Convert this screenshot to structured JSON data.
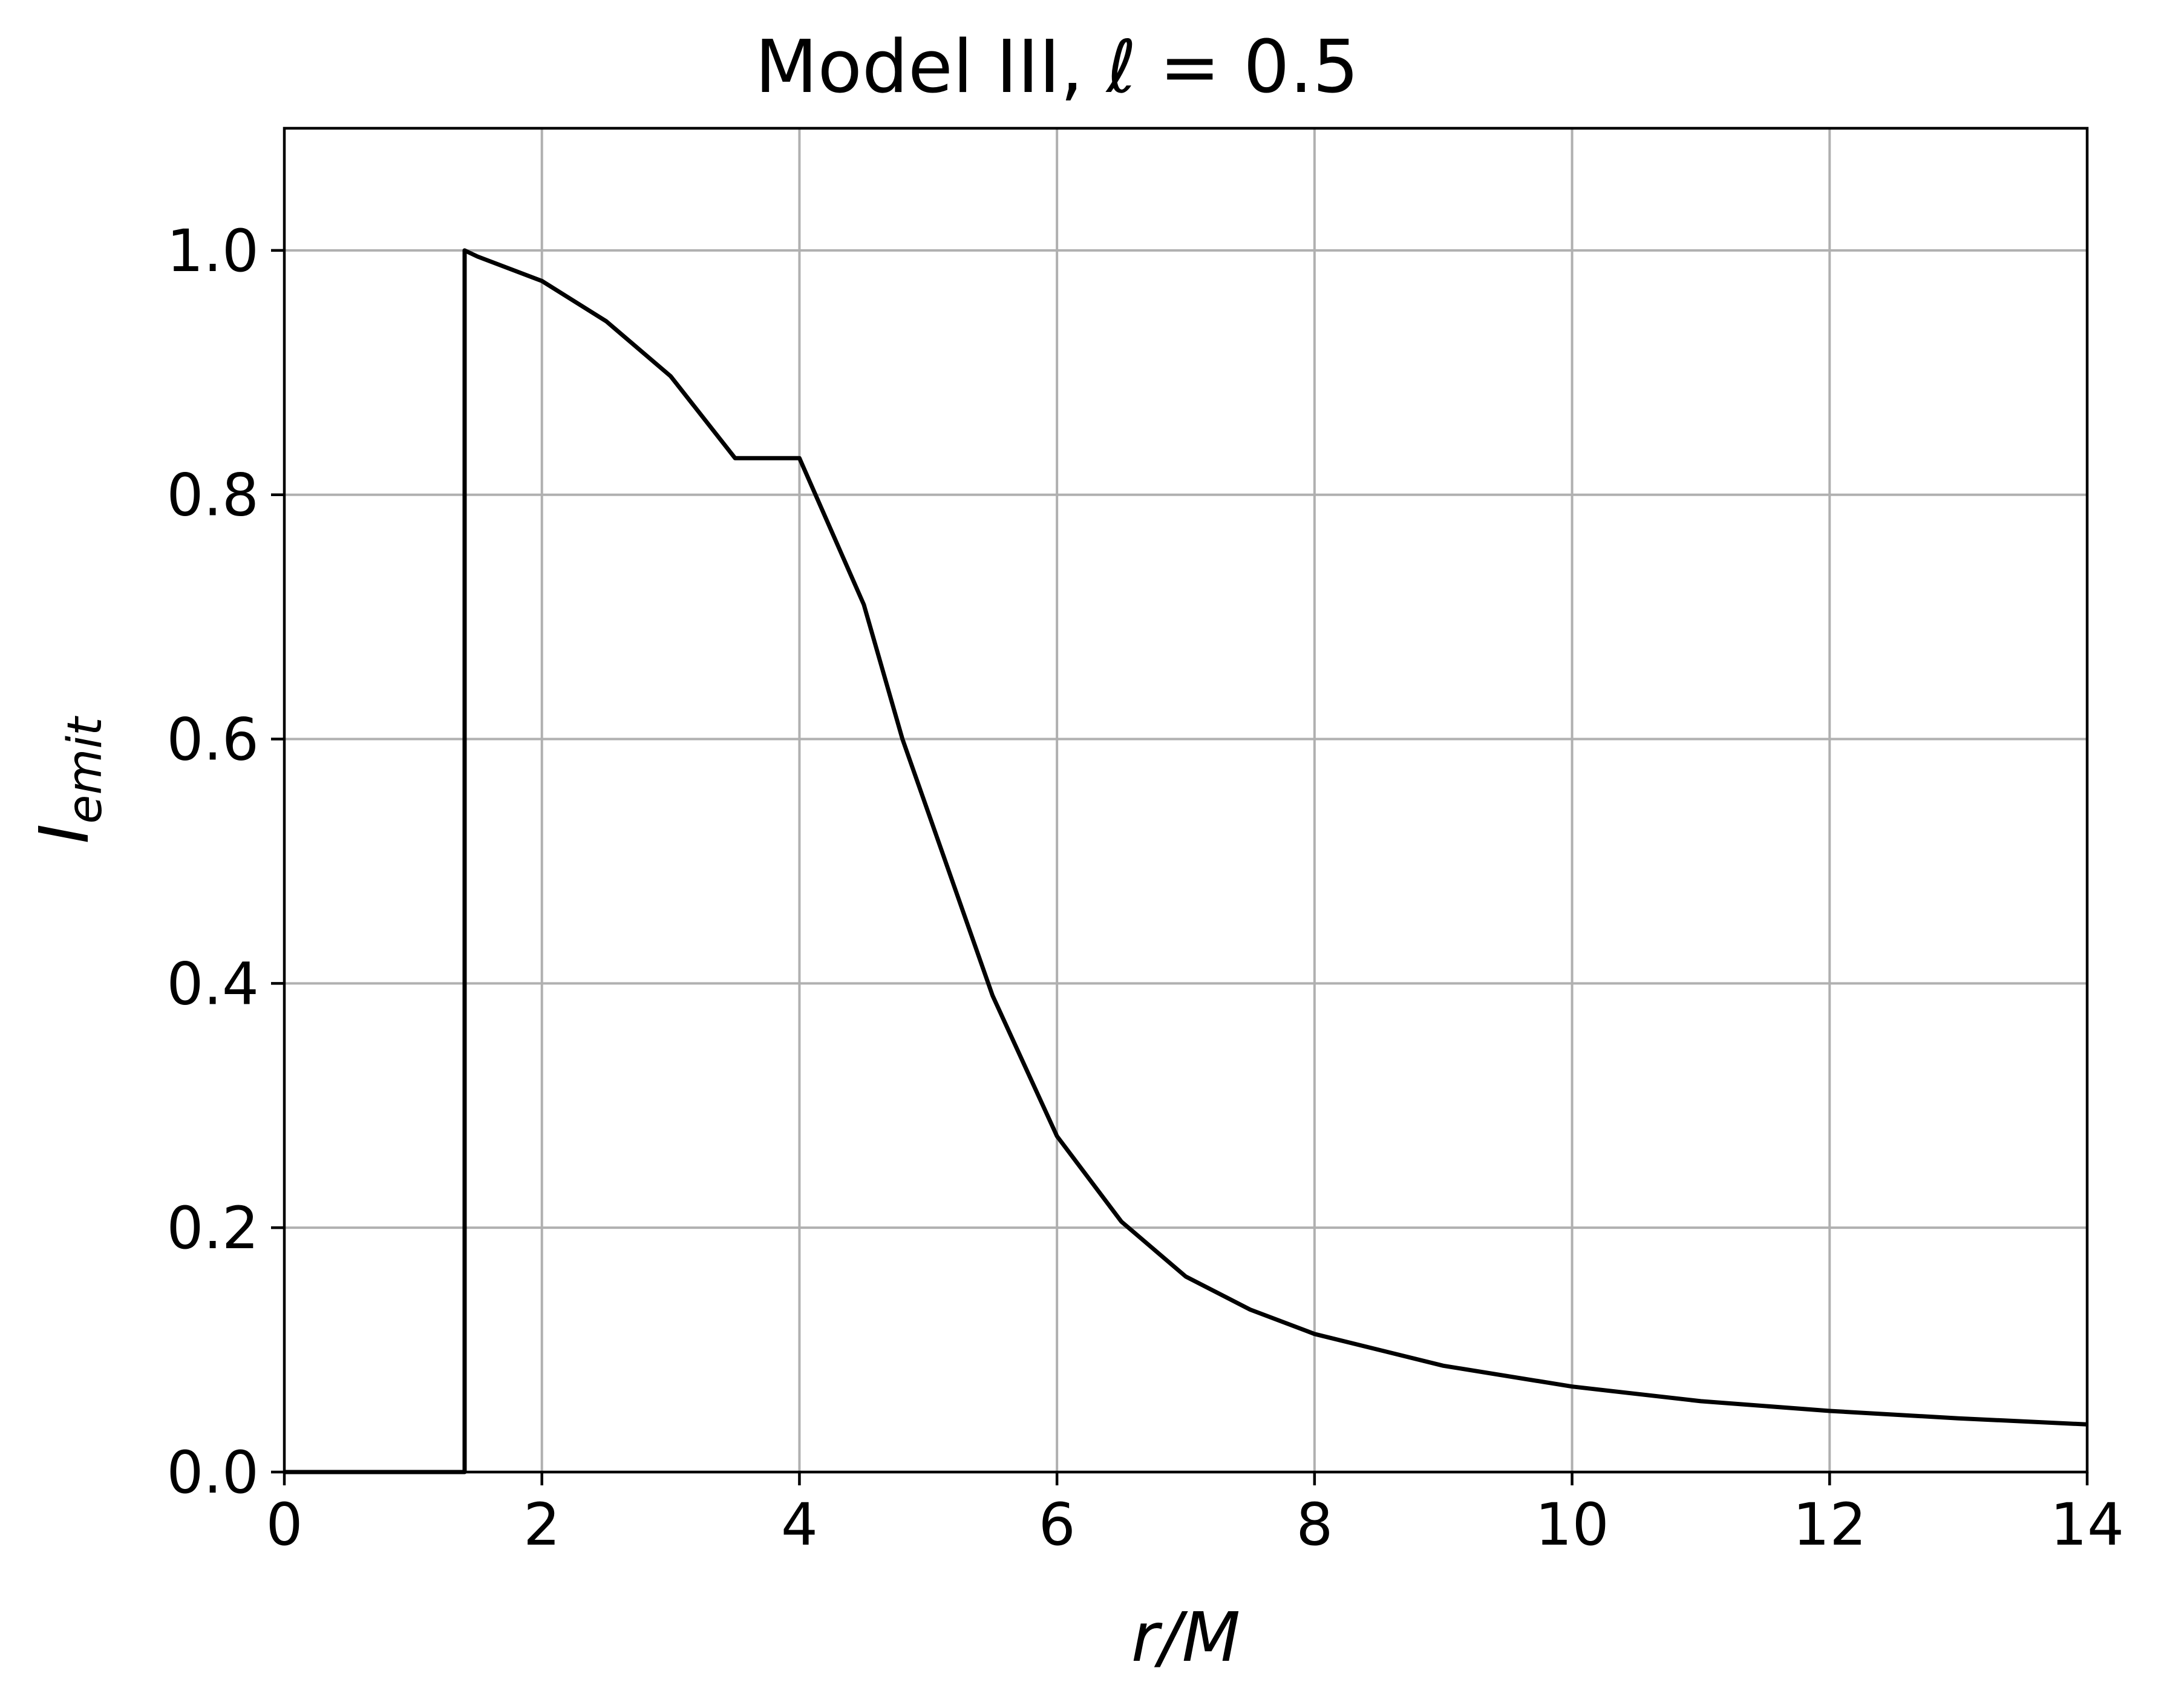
{
  "chart_data": {
    "type": "line",
    "title": "Model III, ℓ = 0.5",
    "xlabel": "r/M",
    "ylabel": {
      "main": "I",
      "subscript": "emit"
    },
    "xlim": [
      0,
      14
    ],
    "ylim": [
      0,
      1.1
    ],
    "xticks": [
      0,
      2,
      4,
      6,
      8,
      10,
      12,
      14
    ],
    "xtick_labels": [
      "0",
      "2",
      "4",
      "6",
      "8",
      "10",
      "12",
      "14"
    ],
    "yticks": [
      0.0,
      0.2,
      0.4,
      0.6,
      0.8,
      1.0
    ],
    "ytick_labels": [
      "0.0",
      "0.2",
      "0.4",
      "0.6",
      "0.8",
      "1.0"
    ],
    "grid": true,
    "line_color": "#000000",
    "grid_color": "#b0b0b0",
    "series": [
      {
        "x": [
          0.0,
          1.4,
          1.4,
          1.5,
          2.0,
          2.5,
          3.0,
          3.5,
          4.0,
          4.5,
          4.8,
          5.0,
          5.5,
          6.0,
          6.5,
          7.0,
          7.5,
          8.0,
          9.0,
          10.0,
          11.0,
          12.0,
          13.0,
          14.0
        ],
        "y": [
          0.0,
          0.0,
          1.0,
          0.995,
          0.975,
          0.942,
          0.897,
          0.83,
          0.83,
          0.71,
          0.6,
          0.54,
          0.39,
          0.275,
          0.205,
          0.16,
          0.133,
          0.113,
          0.087,
          0.07,
          0.058,
          0.05,
          0.044,
          0.039
        ]
      }
    ]
  }
}
